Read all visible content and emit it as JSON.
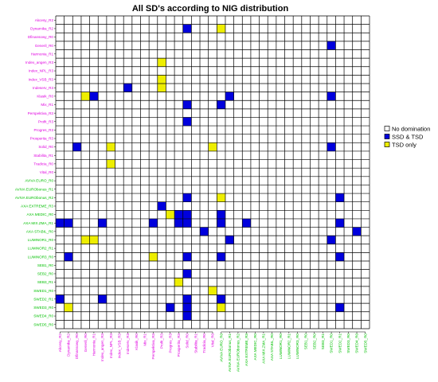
{
  "chart_data": {
    "type": "heatmap",
    "title": "All SD's according to NIG distribution",
    "xlabel": "",
    "ylabel": "",
    "labels": [
      "Akcesy_R2",
      "Dynamika_R2",
      "Dfinansowy_R0",
      "Generil_R0",
      "Harmonia_R1",
      "Index_angen_R3",
      "Index_NPL_R3",
      "Index_VSB_R3",
      "Indeserv_R3",
      "Klasik_R0",
      "Mix_R1",
      "Perspektiva_R3",
      "Profit_R3",
      "Progres_R3",
      "Prosperita_R3",
      "Solid_R0",
      "Stabilita_R1",
      "Tradicia_R0",
      "Vital_R0",
      "AVIVA EURO_R0",
      "AVIVA EURObonus_R1",
      "AVIVA EURObonus_R2",
      "AXA EXTREME_R3",
      "AXA MEDIC_R0",
      "AXA MIX.ZMA_R1",
      "AXA STABIL_R0",
      "LUMINOR1_R0",
      "LUMINOR2_R1",
      "LUMINOR3_R0",
      "SEB1_R0",
      "SEB2_R0",
      "SEB3_R1",
      "SWED1_R0",
      "SWED2_R1",
      "SWED3_R0",
      "SWED4_R0",
      "SWED5_R0"
    ],
    "magenta_count": 19,
    "label_colors": {
      "group1": "#e000e0",
      "group2": "#00c000"
    },
    "legend": {
      "placement": "right",
      "entries": [
        {
          "label": "No domination",
          "color": "#ffffff"
        },
        {
          "label": "SSD & TSD",
          "color": "#0000dd"
        },
        {
          "label": "TSD only",
          "color": "#eeee00"
        }
      ]
    },
    "cells": [
      {
        "row": 1,
        "col": 15,
        "status": "SSD & TSD"
      },
      {
        "row": 1,
        "col": 19,
        "status": "TSD only"
      },
      {
        "row": 3,
        "col": 32,
        "status": "SSD & TSD"
      },
      {
        "row": 5,
        "col": 12,
        "status": "TSD only"
      },
      {
        "row": 7,
        "col": 12,
        "status": "TSD only"
      },
      {
        "row": 8,
        "col": 12,
        "status": "TSD only"
      },
      {
        "row": 8,
        "col": 8,
        "status": "SSD & TSD"
      },
      {
        "row": 9,
        "col": 3,
        "status": "TSD only"
      },
      {
        "row": 9,
        "col": 4,
        "status": "SSD & TSD"
      },
      {
        "row": 9,
        "col": 20,
        "status": "SSD & TSD"
      },
      {
        "row": 9,
        "col": 32,
        "status": "SSD & TSD"
      },
      {
        "row": 10,
        "col": 15,
        "status": "SSD & TSD"
      },
      {
        "row": 10,
        "col": 19,
        "status": "SSD & TSD"
      },
      {
        "row": 12,
        "col": 15,
        "status": "SSD & TSD"
      },
      {
        "row": 15,
        "col": 2,
        "status": "SSD & TSD"
      },
      {
        "row": 15,
        "col": 6,
        "status": "TSD only"
      },
      {
        "row": 15,
        "col": 18,
        "status": "TSD only"
      },
      {
        "row": 15,
        "col": 32,
        "status": "SSD & TSD"
      },
      {
        "row": 17,
        "col": 6,
        "status": "TSD only"
      },
      {
        "row": 21,
        "col": 15,
        "status": "SSD & TSD"
      },
      {
        "row": 21,
        "col": 19,
        "status": "TSD only"
      },
      {
        "row": 21,
        "col": 33,
        "status": "SSD & TSD"
      },
      {
        "row": 22,
        "col": 12,
        "status": "SSD & TSD"
      },
      {
        "row": 23,
        "col": 13,
        "status": "TSD only"
      },
      {
        "row": 23,
        "col": 14,
        "status": "SSD & TSD"
      },
      {
        "row": 23,
        "col": 15,
        "status": "SSD & TSD"
      },
      {
        "row": 23,
        "col": 19,
        "status": "SSD & TSD"
      },
      {
        "row": 24,
        "col": 0,
        "status": "SSD & TSD"
      },
      {
        "row": 24,
        "col": 1,
        "status": "SSD & TSD"
      },
      {
        "row": 24,
        "col": 5,
        "status": "SSD & TSD"
      },
      {
        "row": 24,
        "col": 11,
        "status": "SSD & TSD"
      },
      {
        "row": 24,
        "col": 14,
        "status": "SSD & TSD"
      },
      {
        "row": 24,
        "col": 15,
        "status": "SSD & TSD"
      },
      {
        "row": 24,
        "col": 19,
        "status": "SSD & TSD"
      },
      {
        "row": 24,
        "col": 22,
        "status": "SSD & TSD"
      },
      {
        "row": 24,
        "col": 33,
        "status": "SSD & TSD"
      },
      {
        "row": 25,
        "col": 17,
        "status": "SSD & TSD"
      },
      {
        "row": 25,
        "col": 35,
        "status": "SSD & TSD"
      },
      {
        "row": 26,
        "col": 3,
        "status": "TSD only"
      },
      {
        "row": 26,
        "col": 4,
        "status": "TSD only"
      },
      {
        "row": 26,
        "col": 20,
        "status": "SSD & TSD"
      },
      {
        "row": 26,
        "col": 32,
        "status": "SSD & TSD"
      },
      {
        "row": 28,
        "col": 1,
        "status": "SSD & TSD"
      },
      {
        "row": 28,
        "col": 11,
        "status": "TSD only"
      },
      {
        "row": 28,
        "col": 15,
        "status": "SSD & TSD"
      },
      {
        "row": 28,
        "col": 19,
        "status": "SSD & TSD"
      },
      {
        "row": 28,
        "col": 33,
        "status": "SSD & TSD"
      },
      {
        "row": 30,
        "col": 15,
        "status": "SSD & TSD"
      },
      {
        "row": 31,
        "col": 14,
        "status": "TSD only"
      },
      {
        "row": 32,
        "col": 18,
        "status": "TSD only"
      },
      {
        "row": 33,
        "col": 0,
        "status": "SSD & TSD"
      },
      {
        "row": 33,
        "col": 5,
        "status": "SSD & TSD"
      },
      {
        "row": 33,
        "col": 15,
        "status": "SSD & TSD"
      },
      {
        "row": 33,
        "col": 19,
        "status": "SSD & TSD"
      },
      {
        "row": 34,
        "col": 1,
        "status": "TSD only"
      },
      {
        "row": 34,
        "col": 13,
        "status": "SSD & TSD"
      },
      {
        "row": 34,
        "col": 15,
        "status": "SSD & TSD"
      },
      {
        "row": 34,
        "col": 19,
        "status": "TSD only"
      },
      {
        "row": 34,
        "col": 33,
        "status": "SSD & TSD"
      },
      {
        "row": 35,
        "col": 15,
        "status": "SSD & TSD"
      }
    ]
  }
}
